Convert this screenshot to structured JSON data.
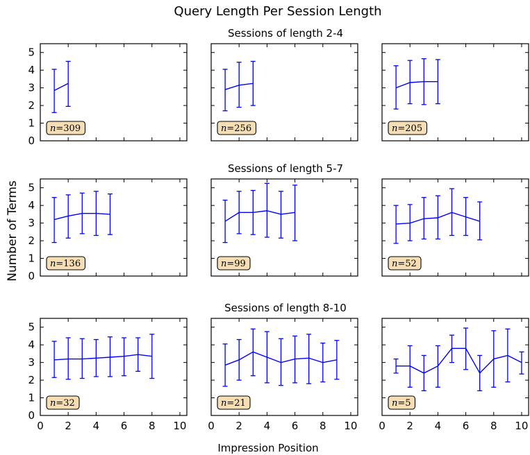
{
  "figure": {
    "title": "Query Length Per Session Length",
    "xlabel": "Impression Position",
    "ylabel": "Number of Terms"
  },
  "colors": {
    "series": "#0000ff",
    "annotation_fill": "#f5deb3",
    "axes": "#000000"
  },
  "chart_data": [
    {
      "type": "line",
      "row_title": "Sessions of length 2-4",
      "n_label": "309",
      "x": [
        1,
        2
      ],
      "y": [
        2.85,
        3.25
      ],
      "err_low": [
        1.6,
        1.95
      ],
      "err_high": [
        4.05,
        4.5
      ],
      "xlim": [
        0,
        10.5
      ],
      "ylim": [
        0,
        5.5
      ],
      "xticks": [
        "0",
        "2",
        "4",
        "6",
        "8",
        "10"
      ],
      "yticks": [
        "0",
        "1",
        "2",
        "3",
        "4",
        "5"
      ]
    },
    {
      "type": "line",
      "row_title": "",
      "n_label": "256",
      "x": [
        1,
        2,
        3
      ],
      "y": [
        2.9,
        3.15,
        3.25
      ],
      "err_low": [
        1.7,
        1.9,
        2.0
      ],
      "err_high": [
        4.05,
        4.45,
        4.5
      ],
      "xlim": [
        0,
        10.5
      ],
      "ylim": [
        0,
        5.5
      ],
      "xticks": [
        "0",
        "2",
        "4",
        "6",
        "8",
        "10"
      ],
      "yticks": [
        "0",
        "1",
        "2",
        "3",
        "4",
        "5"
      ]
    },
    {
      "type": "line",
      "row_title": "",
      "n_label": "205",
      "x": [
        1,
        2,
        3,
        4
      ],
      "y": [
        3.0,
        3.3,
        3.35,
        3.35
      ],
      "err_low": [
        1.8,
        2.1,
        2.05,
        2.1
      ],
      "err_high": [
        4.25,
        4.55,
        4.65,
        4.6
      ],
      "xlim": [
        0,
        10.5
      ],
      "ylim": [
        0,
        5.5
      ],
      "xticks": [
        "0",
        "2",
        "4",
        "6",
        "8",
        "10"
      ],
      "yticks": [
        "0",
        "1",
        "2",
        "3",
        "4",
        "5"
      ]
    },
    {
      "type": "line",
      "row_title": "Sessions of length 5-7",
      "n_label": "136",
      "x": [
        1,
        2,
        3,
        4,
        5
      ],
      "y": [
        3.2,
        3.4,
        3.55,
        3.55,
        3.5
      ],
      "err_low": [
        1.9,
        2.15,
        2.4,
        2.3,
        2.35
      ],
      "err_high": [
        4.45,
        4.6,
        4.7,
        4.8,
        4.65
      ],
      "xlim": [
        0,
        10.5
      ],
      "ylim": [
        0,
        5.5
      ],
      "xticks": [
        "0",
        "2",
        "4",
        "6",
        "8",
        "10"
      ],
      "yticks": [
        "0",
        "1",
        "2",
        "3",
        "4",
        "5"
      ]
    },
    {
      "type": "line",
      "row_title": "",
      "n_label": "99",
      "x": [
        1,
        2,
        3,
        4,
        5,
        6
      ],
      "y": [
        3.1,
        3.6,
        3.6,
        3.7,
        3.5,
        3.6
      ],
      "err_low": [
        1.9,
        2.4,
        2.35,
        2.2,
        2.15,
        2.0
      ],
      "err_high": [
        4.3,
        4.8,
        4.85,
        5.25,
        4.8,
        5.15
      ],
      "xlim": [
        0,
        10.5
      ],
      "ylim": [
        0,
        5.5
      ],
      "xticks": [
        "0",
        "2",
        "4",
        "6",
        "8",
        "10"
      ],
      "yticks": [
        "0",
        "1",
        "2",
        "3",
        "4",
        "5"
      ]
    },
    {
      "type": "line",
      "row_title": "",
      "n_label": "52",
      "x": [
        1,
        2,
        3,
        4,
        5,
        6,
        7
      ],
      "y": [
        2.95,
        3.0,
        3.25,
        3.3,
        3.6,
        3.35,
        3.1
      ],
      "err_low": [
        1.85,
        2.0,
        2.1,
        2.1,
        2.3,
        2.3,
        2.05
      ],
      "err_high": [
        4.0,
        4.05,
        4.45,
        4.55,
        4.95,
        4.45,
        4.2
      ],
      "xlim": [
        0,
        10.5
      ],
      "ylim": [
        0,
        5.5
      ],
      "xticks": [
        "0",
        "2",
        "4",
        "6",
        "8",
        "10"
      ],
      "yticks": [
        "0",
        "1",
        "2",
        "3",
        "4",
        "5"
      ]
    },
    {
      "type": "line",
      "row_title": "Sessions of length 8-10",
      "n_label": "32",
      "x": [
        1,
        2,
        3,
        4,
        5,
        6,
        7,
        8
      ],
      "y": [
        3.15,
        3.2,
        3.2,
        3.25,
        3.3,
        3.35,
        3.45,
        3.35
      ],
      "err_low": [
        2.15,
        2.05,
        2.1,
        2.2,
        2.2,
        2.25,
        2.5,
        2.1
      ],
      "err_high": [
        4.2,
        4.4,
        4.35,
        4.3,
        4.45,
        4.4,
        4.4,
        4.6
      ],
      "xlim": [
        0,
        10.5
      ],
      "ylim": [
        0,
        5.5
      ],
      "xticks": [
        "0",
        "2",
        "4",
        "6",
        "8",
        "10"
      ],
      "yticks": [
        "0",
        "1",
        "2",
        "3",
        "4",
        "5"
      ]
    },
    {
      "type": "line",
      "row_title": "",
      "n_label": "21",
      "x": [
        1,
        2,
        3,
        4,
        5,
        6,
        7,
        8,
        9
      ],
      "y": [
        2.85,
        3.15,
        3.6,
        3.3,
        3.0,
        3.2,
        3.25,
        3.0,
        3.15
      ],
      "err_low": [
        1.65,
        2.0,
        2.25,
        1.85,
        1.7,
        1.85,
        1.8,
        1.9,
        2.05
      ],
      "err_high": [
        4.05,
        4.3,
        4.9,
        4.75,
        4.35,
        4.5,
        4.6,
        4.1,
        4.25
      ],
      "xlim": [
        0,
        10.5
      ],
      "ylim": [
        0,
        5.5
      ],
      "xticks": [
        "0",
        "2",
        "4",
        "6",
        "8",
        "10"
      ],
      "yticks": [
        "0",
        "1",
        "2",
        "3",
        "4",
        "5"
      ]
    },
    {
      "type": "line",
      "row_title": "",
      "n_label": "5",
      "x": [
        1,
        2,
        3,
        4,
        5,
        6,
        7,
        8,
        9,
        10
      ],
      "y": [
        2.8,
        2.8,
        2.4,
        2.8,
        3.8,
        3.8,
        2.4,
        3.2,
        3.4,
        3.0
      ],
      "err_low": [
        2.4,
        1.6,
        1.4,
        1.6,
        3.0,
        2.6,
        1.4,
        1.6,
        1.9,
        2.35
      ],
      "err_high": [
        3.2,
        3.95,
        3.4,
        3.95,
        4.55,
        4.95,
        3.4,
        4.8,
        4.9,
        3.6
      ],
      "xlim": [
        0,
        10.5
      ],
      "ylim": [
        0,
        5.5
      ],
      "xticks": [
        "0",
        "2",
        "4",
        "6",
        "8",
        "10"
      ],
      "yticks": [
        "0",
        "1",
        "2",
        "3",
        "4",
        "5"
      ]
    }
  ]
}
